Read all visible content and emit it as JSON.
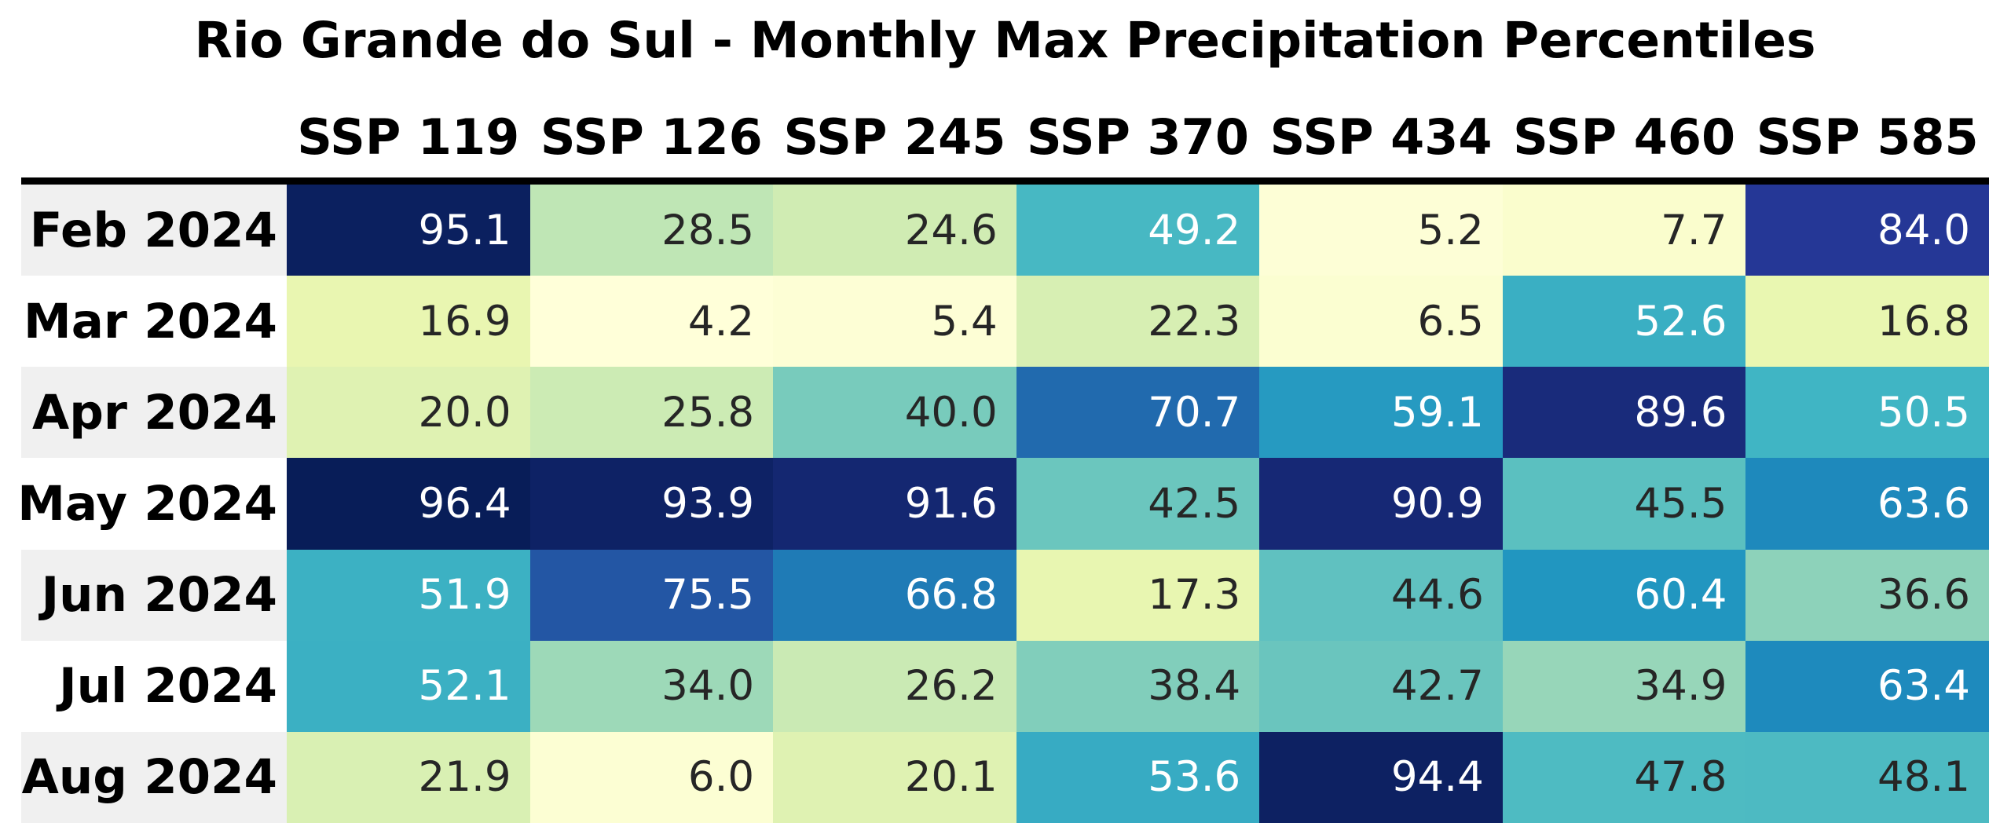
{
  "chart_data": {
    "type": "heatmap",
    "title": "Rio Grande do Sul - Monthly Max Precipitation Percentiles",
    "columns": [
      "SSP 119",
      "SSP 126",
      "SSP 245",
      "SSP 370",
      "SSP 434",
      "SSP 460",
      "SSP 585"
    ],
    "rows": [
      "Feb 2024",
      "Mar 2024",
      "Apr 2024",
      "May 2024",
      "Jun 2024",
      "Jul 2024",
      "Aug 2024"
    ],
    "values": [
      [
        95.1,
        28.5,
        24.6,
        49.2,
        5.2,
        7.7,
        84.0
      ],
      [
        16.9,
        4.2,
        5.4,
        22.3,
        6.5,
        52.6,
        16.8
      ],
      [
        20.0,
        25.8,
        40.0,
        70.7,
        59.1,
        89.6,
        50.5
      ],
      [
        96.4,
        93.9,
        91.6,
        42.5,
        90.9,
        45.5,
        63.6
      ],
      [
        51.9,
        75.5,
        66.8,
        17.3,
        44.6,
        60.4,
        36.6
      ],
      [
        52.1,
        34.0,
        26.2,
        38.4,
        42.7,
        34.9,
        63.4
      ],
      [
        21.9,
        6.0,
        20.1,
        53.6,
        94.4,
        47.8,
        48.1
      ]
    ],
    "value_decimals": 1,
    "colormap": "YlGnBu",
    "palette": [
      "#ffffd9",
      "#edf8b1",
      "#c7e9b4",
      "#7fcdbb",
      "#41b6c4",
      "#1d91c0",
      "#225ea8",
      "#253494",
      "#081d58"
    ],
    "legend": "none",
    "grid": "off",
    "colors": {
      "dark_text": "#262626",
      "light_text": "#ffffff",
      "label_text": "#000000",
      "row_stripe": "#f0f0f0",
      "row_stripe_alt": "#ffffff",
      "header_rule": "#000000",
      "background": "#ffffff"
    }
  }
}
